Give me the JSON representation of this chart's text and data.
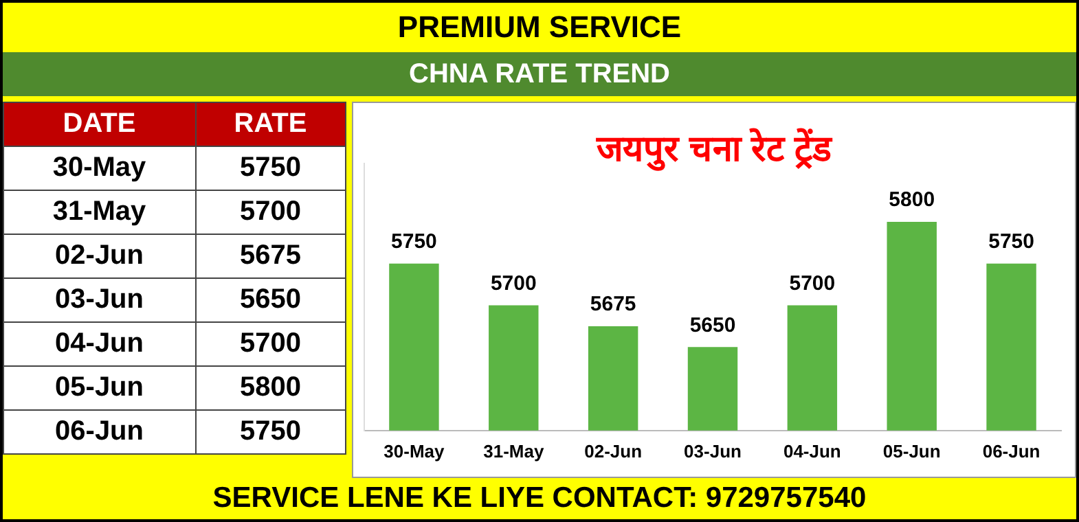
{
  "chart_data": {
    "type": "bar",
    "title": "PREMIUM SERVICE",
    "subtitle": "CHNA RATE TREND",
    "annotations": [
      "जयपुर चना रेट ट्रेंड",
      "DATE",
      "RATE",
      "SERVICE LENE KE LIYE CONTACT: 9729757540"
    ],
    "categories": [
      "30-May",
      "31-May",
      "02-Jun",
      "03-Jun",
      "04-Jun",
      "05-Jun",
      "06-Jun"
    ],
    "values": [
      5750,
      5700,
      5675,
      5650,
      5700,
      5800,
      5750
    ],
    "value_labels": [
      "5750",
      "5700",
      "5675",
      "5650",
      "5700",
      "5800",
      "5750"
    ],
    "color": "#5cb544",
    "ylim": [
      5550,
      5870
    ],
    "grid": false,
    "legend": false,
    "tick_labels": "x"
  }
}
